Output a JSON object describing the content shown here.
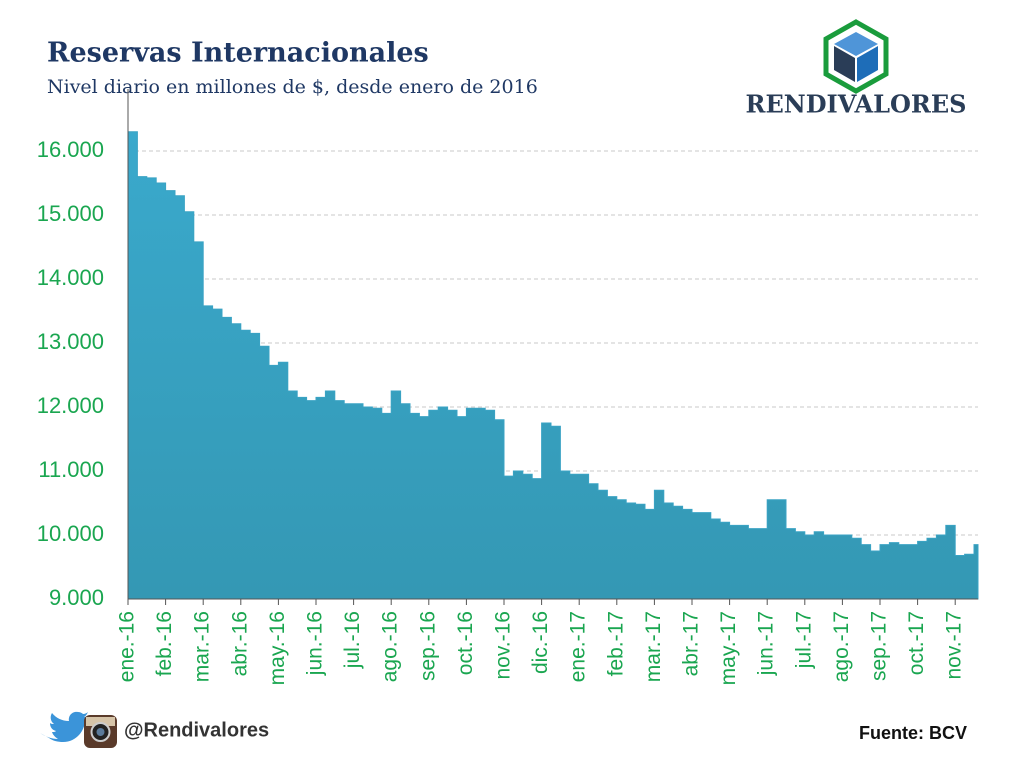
{
  "chart_data": {
    "type": "area",
    "title": "Reservas Internacionales",
    "subtitle": "Nivel diario en millones de $, desde enero de 2016",
    "source": "Fuente: BCV",
    "color": "#3aa3c4",
    "grid": true,
    "ylim": [
      9000,
      16500
    ],
    "yticks": [
      {
        "value": 9000,
        "label": "9.000"
      },
      {
        "value": 10000,
        "label": "10.000"
      },
      {
        "value": 11000,
        "label": "11.000"
      },
      {
        "value": 12000,
        "label": "12.000"
      },
      {
        "value": 13000,
        "label": "13.000"
      },
      {
        "value": 14000,
        "label": "14.000"
      },
      {
        "value": 15000,
        "label": "15.000"
      },
      {
        "value": 16000,
        "label": "16.000"
      }
    ],
    "categories": [
      "ene.-16",
      null,
      null,
      null,
      "feb.-16",
      null,
      null,
      null,
      "mar.-16",
      null,
      null,
      null,
      "abr.-16",
      null,
      null,
      null,
      "may.-16",
      null,
      null,
      null,
      "jun.-16",
      null,
      null,
      null,
      "jul.-16",
      null,
      null,
      null,
      "ago.-16",
      null,
      null,
      null,
      "sep.-16",
      null,
      null,
      null,
      "oct.-16",
      null,
      null,
      null,
      "nov.-16",
      null,
      null,
      null,
      "dic.-16",
      null,
      null,
      null,
      "ene.-17",
      null,
      null,
      null,
      "feb.-17",
      null,
      null,
      null,
      "mar.-17",
      null,
      null,
      null,
      "abr.-17",
      null,
      null,
      null,
      "may.-17",
      null,
      null,
      null,
      "jun.-17",
      null,
      null,
      null,
      "jul.-17",
      null,
      null,
      null,
      "ago.-17",
      null,
      null,
      null,
      "sep.-17",
      null,
      null,
      null,
      "oct.-17",
      null,
      null,
      null,
      "nov.-17",
      null,
      null
    ],
    "values": [
      16300,
      15600,
      15580,
      15500,
      15380,
      15300,
      15050,
      14580,
      13580,
      13530,
      13400,
      13300,
      13200,
      13150,
      12950,
      12650,
      12700,
      12250,
      12150,
      12100,
      12150,
      12250,
      12100,
      12050,
      12050,
      12000,
      11980,
      11900,
      12250,
      12050,
      11900,
      11850,
      11950,
      12000,
      11950,
      11850,
      11980,
      11980,
      11950,
      11800,
      10920,
      11000,
      10950,
      10880,
      11750,
      11700,
      11000,
      10950,
      10950,
      10800,
      10700,
      10600,
      10550,
      10500,
      10480,
      10400,
      10700,
      10500,
      10450,
      10400,
      10350,
      10350,
      10250,
      10200,
      10150,
      10150,
      10100,
      10100,
      10550,
      10550,
      10100,
      10050,
      10000,
      10050,
      10000,
      10000,
      10000,
      9950,
      9850,
      9750,
      9850,
      9880,
      9850,
      9850,
      9900,
      9950,
      10000,
      10150,
      9680,
      9700,
      9850
    ]
  },
  "brand": "RENDIVALORES",
  "handle": "@Rendivalores"
}
